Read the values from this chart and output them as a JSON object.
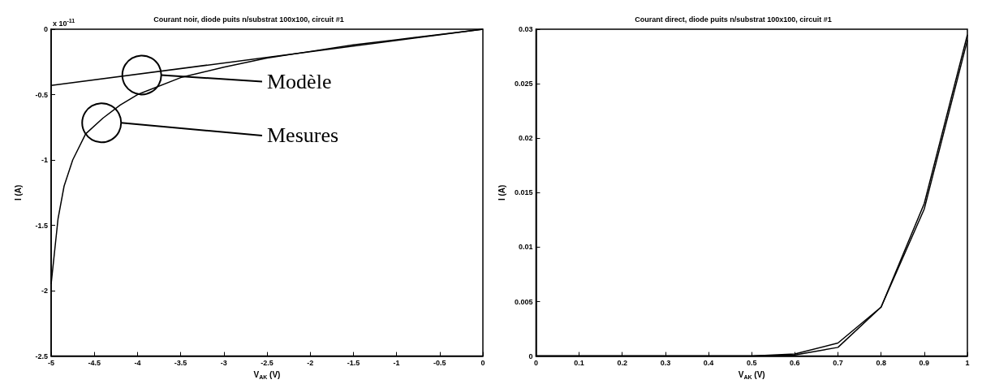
{
  "chart_data": [
    {
      "type": "line",
      "title": "Courant noir, diode puits n/substrat 100x100, circuit #1",
      "xlabel": "V$_{AK}$ (V)",
      "ylabel": "I (A)",
      "xlim": [
        -5,
        0
      ],
      "xticks": [
        -5,
        -4.5,
        -4,
        -3.5,
        -3,
        -2.5,
        -2,
        -1.5,
        -1,
        -0.5,
        0
      ],
      "ylim": [
        -2.5,
        0
      ],
      "yticks": [
        -2.5,
        -2,
        -1.5,
        -1,
        -0.5,
        0
      ],
      "grid": false,
      "marker": "none",
      "line_style": "solid",
      "series": [
        {
          "color": "#000000",
          "x": [
            -5,
            0
          ],
          "values": [
            -0.43,
            0
          ]
        },
        {
          "color": "#000000",
          "x": [
            -5,
            -4.92,
            -4.85,
            -4.75,
            -4.6,
            -4.4,
            -4.2,
            -4,
            -3.5,
            -3,
            -2.5,
            -2,
            -1.5,
            -1,
            -0.5,
            0
          ],
          "values": [
            -1.95,
            -1.45,
            -1.2,
            -1.0,
            -0.8,
            -0.68,
            -0.58,
            -0.5,
            -0.37,
            -0.29,
            -0.22,
            -0.17,
            -0.12,
            -0.08,
            -0.04,
            0
          ]
        }
      ],
      "annotations": [
        "x 10$^{-11}$",
        "Modèle",
        "Mesures"
      ]
    },
    {
      "type": "line",
      "title": "Courant direct, diode puits n/substrat 100x100, circuit #1",
      "xlabel": "V$_{AK}$ (V)",
      "ylabel": "I (A)",
      "xlim": [
        0,
        1
      ],
      "xticks": [
        0,
        0.1,
        0.2,
        0.3,
        0.4,
        0.5,
        0.6,
        0.7,
        0.8,
        0.9,
        1
      ],
      "ylim": [
        0,
        0.03
      ],
      "yticks": [
        0,
        0.005,
        0.01,
        0.015,
        0.02,
        0.025,
        0.03
      ],
      "grid": false,
      "marker": "none",
      "line_style": "solid",
      "series": [
        {
          "color": "#000000",
          "x": [
            0,
            0.1,
            0.2,
            0.3,
            0.4,
            0.5,
            0.6,
            0.7,
            0.8,
            0.9,
            1
          ],
          "values": [
            0,
            0,
            0,
            0,
            0,
            0,
            0.0002,
            0.0012,
            0.0045,
            0.014,
            0.0295
          ]
        },
        {
          "color": "#000000",
          "x": [
            0,
            0.1,
            0.2,
            0.3,
            0.4,
            0.5,
            0.6,
            0.7,
            0.8,
            0.9,
            1
          ],
          "values": [
            0,
            0,
            0,
            0,
            0,
            0,
            0.0001,
            0.0008,
            0.0045,
            0.0135,
            0.029
          ]
        }
      ]
    }
  ]
}
